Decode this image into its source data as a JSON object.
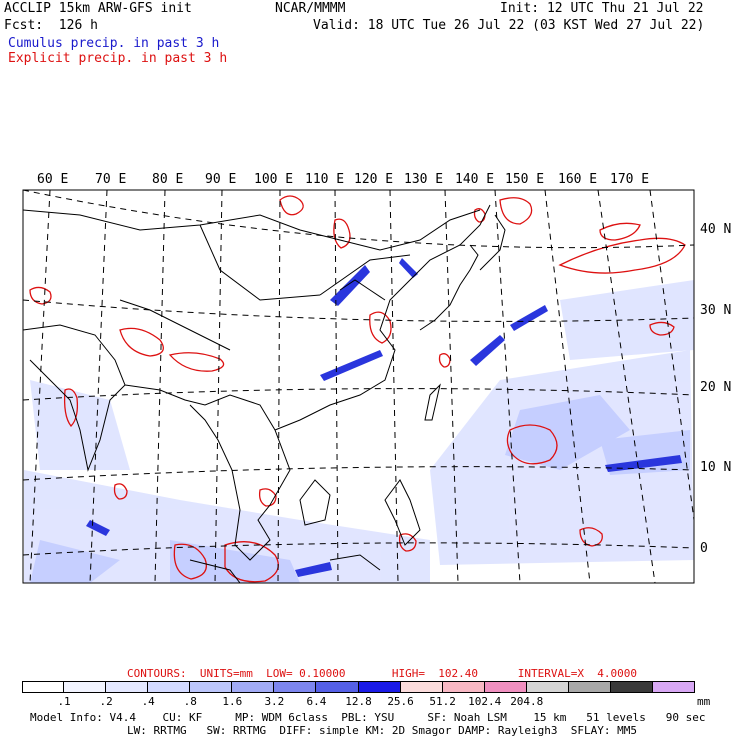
{
  "header": {
    "model": "ACCLIP 15km ARW-GFS init",
    "forecast": "Fcst:  126 h",
    "center": "NCAR/MMMM",
    "init": "Init: 12 UTC Thu 21 Jul 22",
    "valid": "Valid: 18 UTC Tue 26 Jul 22 (03 KST Wed 27 Jul 22)",
    "legend_cumulus": "Cumulus precip. in past 3 h",
    "legend_explicit": "Explicit precip. in past 3 h"
  },
  "map": {
    "lon_labels": [
      "60 E",
      "70 E",
      "80 E",
      "90 E",
      "100 E",
      "110 E",
      "120 E",
      "130 E",
      "140 E",
      "150 E",
      "160 E",
      "170 E"
    ],
    "lat_labels": [
      "40 N",
      "30 N",
      "20 N",
      "10 N",
      "0"
    ]
  },
  "contours": {
    "label": "CONTOURS:  UNITS=mm  LOW= 0.10000       HIGH=  102.40      INTERVAL=X  4.0000",
    "color": "#dd1111"
  },
  "colorbar": {
    "colors": [
      "#ffffff",
      "#f2f4ff",
      "#e4e8ff",
      "#d3daff",
      "#bcc6fb",
      "#a2abf5",
      "#7d86ee",
      "#5560e6",
      "#1a1ae6",
      "#fbdcdc",
      "#f8b8c4",
      "#f090c0",
      "#d4d4d4",
      "#a8a8a8",
      "#3a3a3a",
      "#d8a8f4"
    ],
    "labels": [
      ".1",
      ".2",
      ".4",
      ".8",
      "1.6",
      "3.2",
      "6.4",
      "12.8",
      "25.6",
      "51.2",
      "102.4",
      "204.8"
    ],
    "units": "mm"
  },
  "footer": {
    "line1": "Model Info: V4.4    CU: KF     MP: WDM 6class  PBL: YSU     SF: Noah LSM    15 km   51 levels   90 sec",
    "line2": "LW: RRTMG   SW: RRTMG  DIFF: simple KM: 2D Smagor DAMP: Rayleigh3  SFLAY: MM5"
  },
  "colors": {
    "cumulus": "#1a1acc",
    "explicit": "#dd1111",
    "light_precip": "#c9d2ff",
    "heavy_precip": "#2233dd"
  }
}
